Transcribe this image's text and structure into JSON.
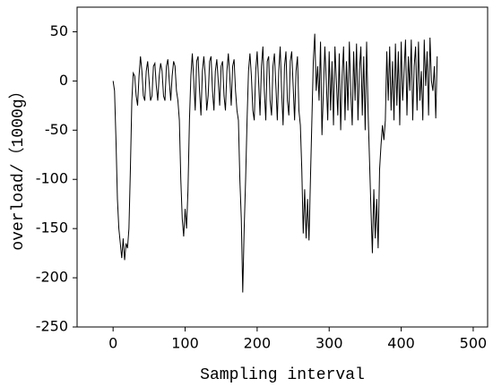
{
  "chart_data": {
    "type": "line",
    "xlabel": "Sampling interval",
    "ylabel": "overload/（1000g）",
    "xlim": [
      -50,
      520
    ],
    "ylim": [
      -250,
      75
    ],
    "xticks": [
      0,
      100,
      200,
      300,
      400,
      500
    ],
    "yticks": [
      -250,
      -200,
      -150,
      -100,
      -50,
      0,
      50
    ],
    "x": [
      0,
      2,
      4,
      6,
      8,
      10,
      12,
      14,
      16,
      18,
      20,
      22,
      24,
      26,
      28,
      30,
      32,
      34,
      36,
      38,
      40,
      42,
      44,
      46,
      48,
      50,
      52,
      54,
      56,
      58,
      60,
      62,
      64,
      66,
      68,
      70,
      72,
      74,
      76,
      78,
      80,
      82,
      84,
      86,
      88,
      90,
      92,
      94,
      96,
      98,
      100,
      102,
      104,
      106,
      108,
      110,
      112,
      114,
      116,
      118,
      120,
      122,
      124,
      126,
      128,
      130,
      132,
      134,
      136,
      138,
      140,
      142,
      144,
      146,
      148,
      150,
      152,
      154,
      156,
      158,
      160,
      162,
      164,
      166,
      168,
      170,
      172,
      174,
      176,
      178,
      180,
      182,
      184,
      186,
      188,
      190,
      192,
      194,
      196,
      198,
      200,
      202,
      204,
      206,
      208,
      210,
      212,
      214,
      216,
      218,
      220,
      222,
      224,
      226,
      228,
      230,
      232,
      234,
      236,
      238,
      240,
      242,
      244,
      246,
      248,
      250,
      252,
      254,
      256,
      258,
      260,
      262,
      264,
      266,
      268,
      270,
      272,
      274,
      276,
      278,
      280,
      282,
      284,
      286,
      288,
      290,
      292,
      294,
      296,
      298,
      300,
      302,
      304,
      306,
      308,
      310,
      312,
      314,
      316,
      318,
      320,
      322,
      324,
      326,
      328,
      330,
      332,
      334,
      336,
      338,
      340,
      342,
      344,
      346,
      348,
      350,
      352,
      354,
      356,
      358,
      360,
      362,
      364,
      366,
      368,
      370,
      372,
      374,
      376,
      378,
      380,
      382,
      384,
      386,
      388,
      390,
      392,
      394,
      396,
      398,
      400,
      402,
      404,
      406,
      408,
      410,
      412,
      414,
      416,
      418,
      420,
      422,
      424,
      426,
      428,
      430,
      432,
      434,
      436,
      438,
      440,
      442,
      444,
      446,
      448,
      450
    ],
    "series": [
      {
        "color": "#000000",
        "values": [
          0,
          -10,
          -60,
          -120,
          -150,
          -165,
          -180,
          -160,
          -182,
          -165,
          -170,
          -150,
          -90,
          -20,
          8,
          5,
          -15,
          -25,
          5,
          25,
          10,
          -15,
          -20,
          10,
          20,
          0,
          -20,
          -15,
          15,
          18,
          -5,
          -20,
          5,
          18,
          10,
          -15,
          -20,
          15,
          22,
          0,
          -20,
          5,
          20,
          15,
          -10,
          -20,
          -40,
          -100,
          -140,
          -158,
          -130,
          -150,
          -110,
          -40,
          5,
          28,
          0,
          -30,
          20,
          25,
          -10,
          -35,
          10,
          25,
          5,
          -30,
          -15,
          20,
          25,
          -10,
          -30,
          10,
          22,
          0,
          -25,
          15,
          20,
          -15,
          -30,
          10,
          28,
          5,
          -25,
          15,
          22,
          -10,
          -30,
          -40,
          -100,
          -140,
          -215,
          -150,
          -100,
          -40,
          10,
          28,
          5,
          -30,
          -40,
          10,
          30,
          0,
          -35,
          15,
          35,
          -10,
          -40,
          20,
          25,
          -20,
          -35,
          15,
          28,
          -5,
          -40,
          10,
          35,
          -10,
          -45,
          15,
          30,
          -20,
          -35,
          20,
          30,
          -5,
          -40,
          10,
          25,
          -30,
          -45,
          -90,
          -155,
          -110,
          -160,
          -120,
          -162,
          -100,
          -40,
          20,
          48,
          -10,
          15,
          -20,
          40,
          -55,
          -10,
          35,
          0,
          -40,
          30,
          -30,
          20,
          -45,
          35,
          0,
          -35,
          28,
          -50,
          5,
          35,
          -40,
          20,
          -30,
          40,
          -10,
          -45,
          30,
          -20,
          38,
          -40,
          10,
          35,
          -35,
          25,
          -50,
          40,
          -30,
          -80,
          -130,
          -175,
          -110,
          -160,
          -120,
          -170,
          -90,
          -65,
          -45,
          -60,
          -40,
          30,
          -20,
          35,
          -30,
          20,
          -40,
          38,
          -25,
          30,
          -45,
          40,
          -20,
          10,
          42,
          -35,
          25,
          -10,
          42,
          -40,
          15,
          35,
          -30,
          40,
          -20,
          10,
          -40,
          42,
          -5,
          30,
          -35,
          44,
          0,
          -10,
          15,
          -38,
          25
        ]
      }
    ]
  }
}
